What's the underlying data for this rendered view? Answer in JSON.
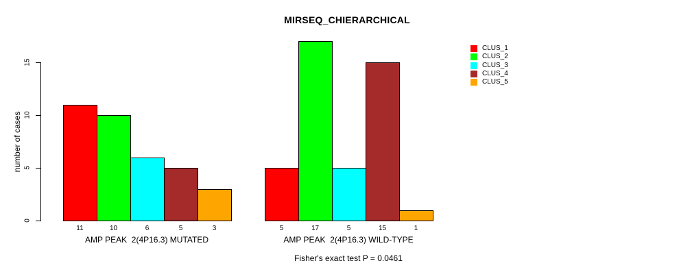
{
  "chart_data": {
    "type": "bar",
    "title": "MIRSEQ_CHIERARCHICAL",
    "ylabel": "number of cases",
    "xlabel": "",
    "annotation": "Fisher's exact test P = 0.0461",
    "yticks": [
      0,
      5,
      10,
      15
    ],
    "ylim": [
      0,
      17
    ],
    "grid": false,
    "legend_position": "top-right",
    "series_names": [
      "CLUS_1",
      "CLUS_2",
      "CLUS_3",
      "CLUS_4",
      "CLUS_5"
    ],
    "series_colors": [
      "#ff0000",
      "#00ff00",
      "#00ffff",
      "#a52a2a",
      "#ffa500"
    ],
    "groups": [
      {
        "label": "AMP PEAK  2(4P16.3) MUTATED",
        "values": [
          11,
          10,
          6,
          5,
          3
        ]
      },
      {
        "label": "AMP PEAK  2(4P16.3) WILD-TYPE",
        "values": [
          5,
          17,
          5,
          15,
          1
        ]
      }
    ],
    "bar_value_labels_shown": true,
    "background_color": "#ffffff",
    "axis_color": "#000000"
  }
}
